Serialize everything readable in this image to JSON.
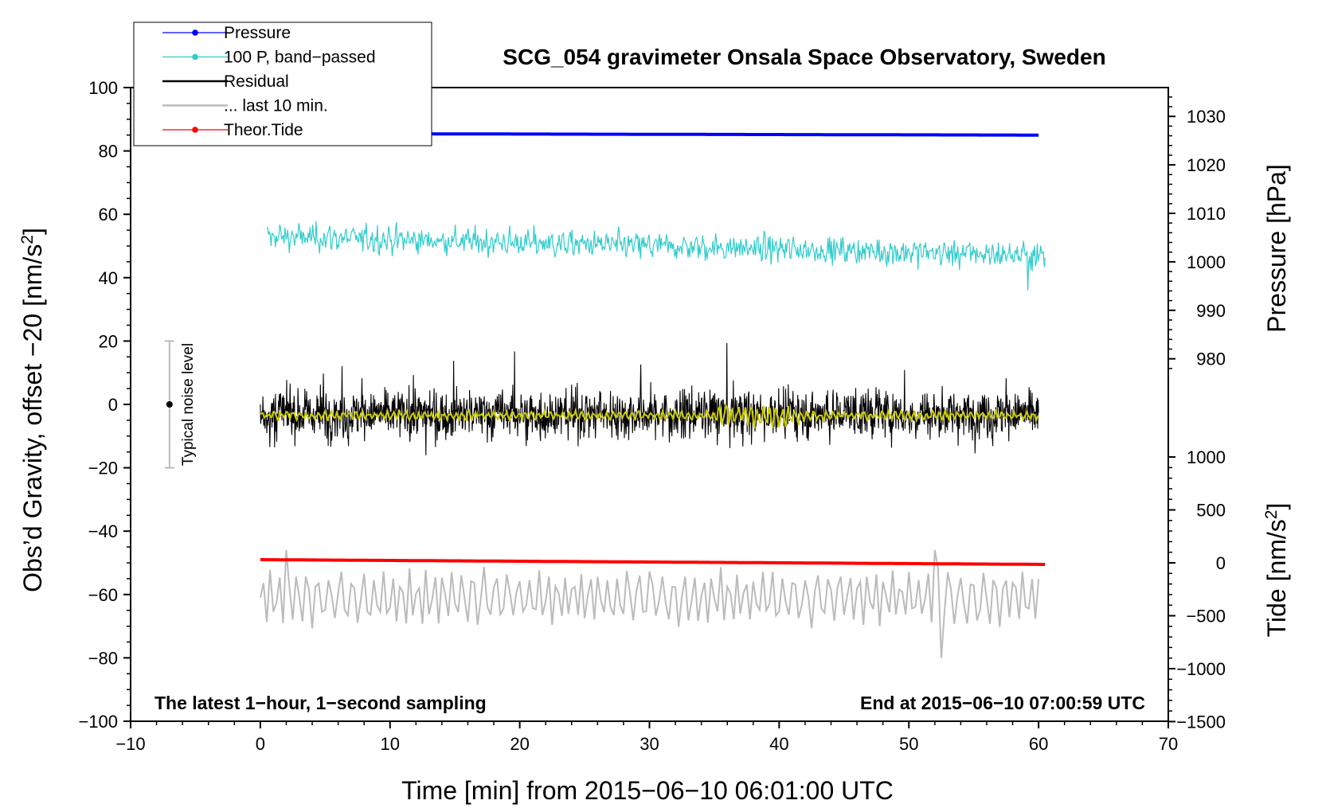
{
  "chart_data": {
    "type": "line",
    "title": "SCG_054 gravimeter Onsala Space Observatory, Sweden",
    "xlabel": "Time [min] from 2015−06−10 06:01:00 UTC",
    "ylabel_left": "Obs’d Gravity, offset −20 [nm/s",
    "ylabel_left_sup": "2",
    "ylabel_left_end": "]",
    "ylabel_pressure": "Pressure [hPa]",
    "ylabel_tide": "Tide [nm/s",
    "ylabel_tide_sup": "2",
    "ylabel_tide_end": "]",
    "xlim": [
      -10,
      70
    ],
    "ylim_left": [
      -100,
      100
    ],
    "x_ticks": [
      "−10",
      "0",
      "10",
      "20",
      "30",
      "40",
      "50",
      "60",
      "70"
    ],
    "x_tick_values": [
      -10,
      0,
      10,
      20,
      30,
      40,
      50,
      60,
      70
    ],
    "y_ticks_left": [
      "100",
      "80",
      "60",
      "40",
      "20",
      "0",
      "−20",
      "−40",
      "−60",
      "−80",
      "−100"
    ],
    "y_tick_values_left": [
      100,
      80,
      60,
      40,
      20,
      0,
      -20,
      -40,
      -60,
      -80,
      -100
    ],
    "pressure_axis": {
      "tick_labels": [
        "1030",
        "1020",
        "1010",
        "1000",
        "990",
        "980"
      ],
      "tick_values": [
        1030,
        1020,
        1010,
        1000,
        990,
        980
      ],
      "mapping_note": "pressure 1000 hPa at left value 45, 10 hPa per 15.3 units"
    },
    "tide_axis": {
      "tick_labels": [
        "1000",
        "500",
        "0",
        "−500",
        "−1000",
        "−1500"
      ],
      "tick_values": [
        1000,
        500,
        0,
        -500,
        -1000,
        -1500
      ],
      "mapping_note": "tide 0 at left value -50, 500 nm/s2 per 16.7 units"
    },
    "series": [
      {
        "name": "Pressure",
        "color": "#0000ff",
        "x_range": [
          0,
          60
        ],
        "approx_value_hpa": 1024.6,
        "left_axis_value_start": 85.5,
        "left_axis_value_end": 85.0
      },
      {
        "name": "100 P, band−passed",
        "color": "#33cccc",
        "x_range": [
          0,
          60
        ],
        "left_axis_value_start": 53,
        "left_axis_value_end": 47,
        "amplitude": 5
      },
      {
        "name": "Residual",
        "color": "#000000",
        "x_range": [
          0,
          60
        ],
        "center": -3,
        "amplitude": 10
      },
      {
        "name": "Residual smoothed",
        "color": "#cccc00",
        "x_range": [
          0,
          60
        ],
        "center": -3.5,
        "amplitude": 1.5
      },
      {
        "name": "... last 10 min.",
        "color": "#bbbbbb",
        "x_range": [
          0,
          60
        ],
        "center": -61,
        "amplitude": 10
      },
      {
        "name": "Theor.Tide",
        "color": "#ff0000",
        "x_range": [
          0,
          60.5
        ],
        "left_axis_value_start": -49,
        "left_axis_value_end": -50.5
      }
    ],
    "noise_bar": {
      "label": "Typical noise level",
      "x": -7,
      "y_center": 0,
      "y_low": -20,
      "y_high": 20
    },
    "legend": {
      "placement": "top-left",
      "entries": [
        {
          "label": "Pressure",
          "color": "#0000ff",
          "marker": true
        },
        {
          "label": "100 P, band−passed",
          "color": "#33cccc",
          "marker": true
        },
        {
          "label": "Residual",
          "color": "#000000",
          "marker": false
        },
        {
          "label": "... last 10 min.",
          "color": "#bbbbbb",
          "marker": false
        },
        {
          "label": "Theor.Tide",
          "color": "#ff0000",
          "marker": true
        }
      ]
    },
    "annotations": {
      "bottom_left": "The latest 1−hour, 1−second sampling",
      "bottom_right": "End at 2015−06−10 07:00:59 UTC"
    }
  }
}
